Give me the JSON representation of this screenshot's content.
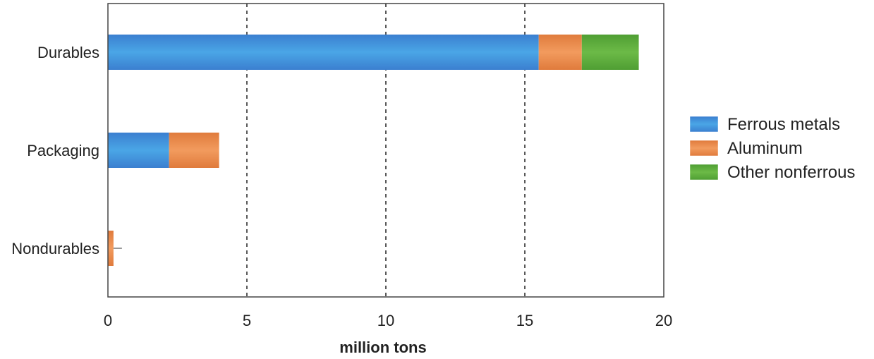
{
  "chart_data": {
    "type": "bar",
    "orientation": "horizontal",
    "stacked": true,
    "categories": [
      "Durables",
      "Packaging",
      "Nondurables"
    ],
    "series": [
      {
        "name": "Ferrous metals",
        "color": "#3a8dd6",
        "values": [
          15.5,
          2.2,
          0
        ]
      },
      {
        "name": "Aluminum",
        "color": "#ea8a4a",
        "values": [
          1.55,
          1.8,
          0.2
        ]
      },
      {
        "name": "Other nonferrous",
        "color": "#5cab3c",
        "values": [
          2.05,
          0,
          0
        ]
      }
    ],
    "xlabel": "million tons",
    "ylabel": "",
    "xlim": [
      0,
      20
    ],
    "xticks": [
      0,
      5,
      10,
      15,
      20
    ],
    "grid": "vertical dashed",
    "legend": "right"
  }
}
